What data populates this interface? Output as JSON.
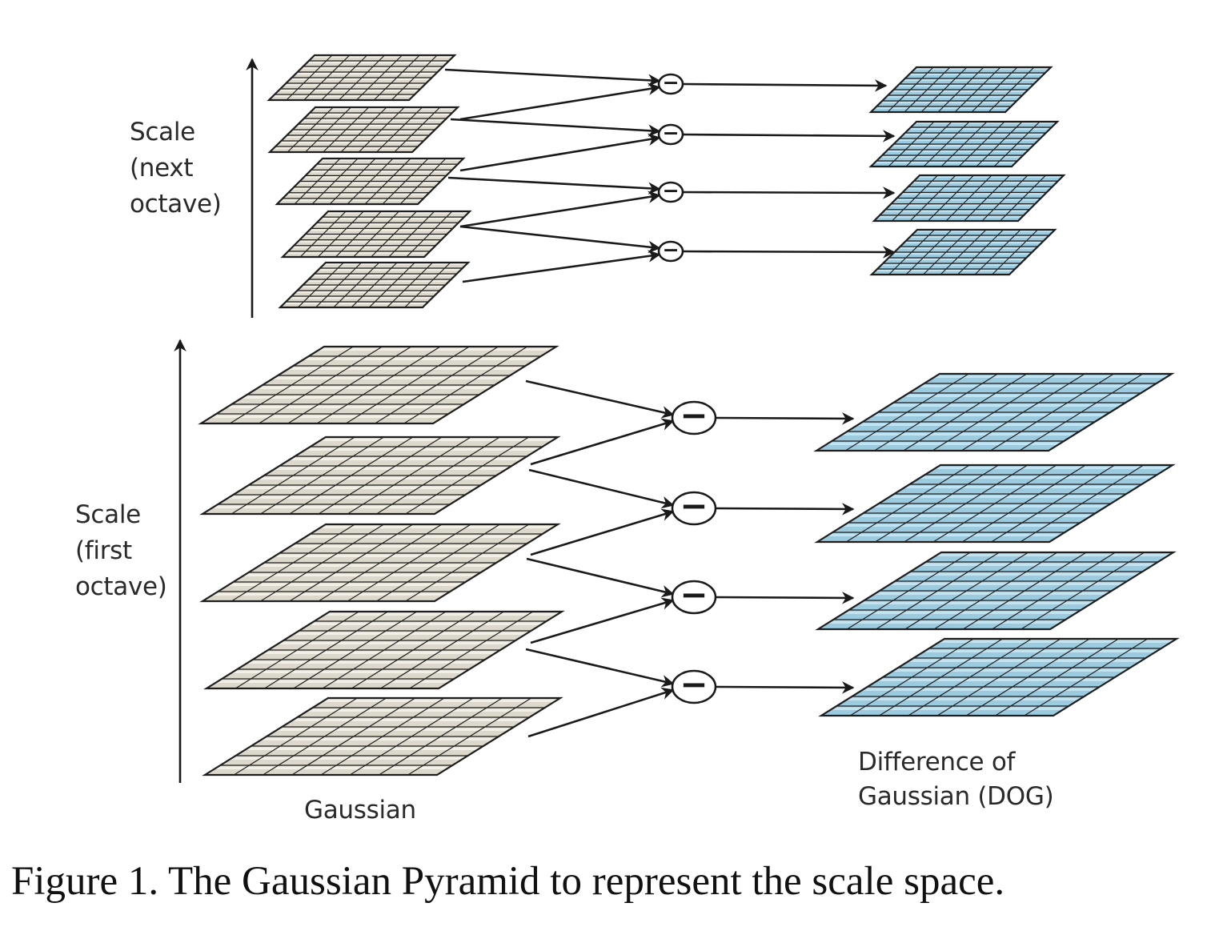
{
  "labels": {
    "scale_next": [
      "Scale",
      "(next",
      "octave)"
    ],
    "scale_first": [
      "Scale",
      "(first",
      "octave)"
    ],
    "gaussian": "Gaussian",
    "dog": [
      "Difference of",
      "Gaussian (DOG)"
    ],
    "minus_symbol": "−"
  },
  "caption": "Figure 1. The Gaussian Pyramid to represent the scale space.",
  "colors": {
    "gaussian_fill": "#dcd8cc",
    "gaussian_stripe": "#f2efe6",
    "dog_fill": "#9ccbe0",
    "dog_stripe": "#c4e3f0",
    "grid_line": "#1e1e1e",
    "arrow": "#1a1a1a"
  },
  "structure": {
    "octaves": [
      {
        "name": "next octave",
        "gaussian_levels": 5,
        "dog_levels": 4
      },
      {
        "name": "first octave",
        "gaussian_levels": 5,
        "dog_levels": 4
      }
    ],
    "grid_cells": [
      8,
      8
    ]
  }
}
